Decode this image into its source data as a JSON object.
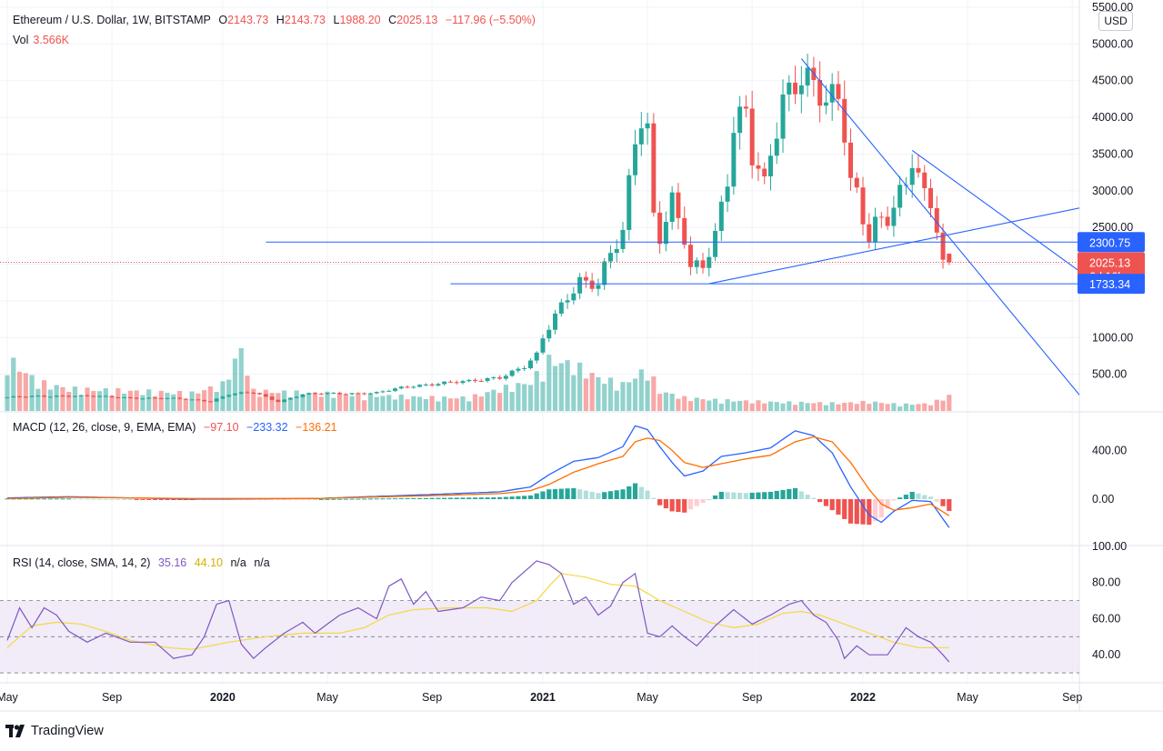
{
  "header": {
    "symbol": "Ethereum / U.S. Dollar, 1W, BITSTAMP",
    "open_label": "O",
    "open": "2143.73",
    "high_label": "H",
    "high": "2143.73",
    "low_label": "L",
    "low": "1988.20",
    "close_label": "C",
    "close": "2025.13",
    "change": "−117.96 (−5.50%)",
    "vol_label": "Vol",
    "vol_value": "3.566K"
  },
  "macd_legend": {
    "name": "MACD (12, 26, close, 9, EMA, EMA)",
    "hist": "−97.10",
    "macd": "−233.32",
    "signal": "−136.21"
  },
  "rsi_legend": {
    "name": "RSI (14, close, SMA, 14, 2)",
    "rsi": "35.16",
    "ma": "44.10",
    "na1": "n/a",
    "na2": "n/a"
  },
  "currency_button": "USD",
  "branding": "TradingView",
  "colors": {
    "up": "#26a69a",
    "down": "#ef5350",
    "line": "#2962ff",
    "macd": "#2962ff",
    "signal": "#ff6d00",
    "rsi": "#7e57c2",
    "rsi_ma": "#f5d742",
    "rsi_band": "#ede7f6"
  },
  "chart_data": {
    "type": "candlestick",
    "title": "Ethereum / U.S. Dollar, 1W, BITSTAMP",
    "x_ticks": [
      {
        "label": "May",
        "t": 0,
        "bold": false
      },
      {
        "label": "Sep",
        "t": 17,
        "bold": false
      },
      {
        "label": "2020",
        "t": 35,
        "bold": true
      },
      {
        "label": "May",
        "t": 52,
        "bold": false
      },
      {
        "label": "Sep",
        "t": 69,
        "bold": false
      },
      {
        "label": "2021",
        "t": 87,
        "bold": true
      },
      {
        "label": "May",
        "t": 104,
        "bold": false
      },
      {
        "label": "Sep",
        "t": 121,
        "bold": false
      },
      {
        "label": "2022",
        "t": 139,
        "bold": true
      },
      {
        "label": "May",
        "t": 156,
        "bold": false
      },
      {
        "label": "Sep",
        "t": 173,
        "bold": false
      }
    ],
    "price_axis": {
      "ylim": [
        0,
        5500
      ],
      "ticks": [
        "5500.00",
        "5000.00",
        "4500.00",
        "4000.00",
        "3500.00",
        "3000.00",
        "2500.00",
        "1000.00",
        "500.00"
      ],
      "tick_values": [
        5500,
        5000,
        4500,
        4000,
        3500,
        3000,
        2500,
        1000,
        500
      ]
    },
    "price_labels": [
      {
        "value": 2300.75,
        "text": "2300.75",
        "color": "#2962ff"
      },
      {
        "value": 2025.13,
        "text": "2025.13",
        "sub": "6d 16h",
        "color": "#ef5350"
      },
      {
        "value": 1733.34,
        "text": "1733.34",
        "color": "#2962ff"
      }
    ],
    "horizontal_lines": [
      {
        "value": 2300.75,
        "from_t": 42
      },
      {
        "value": 1733.34,
        "from_t": 72
      }
    ],
    "trend_lines": [
      {
        "t1": 129,
        "v1": 4800,
        "t2": 198,
        "v2": -2200
      },
      {
        "t1": 114,
        "v1": 1733,
        "t2": 175,
        "v2": 2780
      },
      {
        "t1": 147,
        "v1": 3550,
        "t2": 177,
        "v2": 1733
      }
    ],
    "anchors": [
      [
        0,
        185
      ],
      [
        10,
        210
      ],
      [
        20,
        180
      ],
      [
        28,
        165
      ],
      [
        33,
        135
      ],
      [
        36,
        225
      ],
      [
        40,
        250
      ],
      [
        44,
        130
      ],
      [
        48,
        225
      ],
      [
        54,
        240
      ],
      [
        60,
        245
      ],
      [
        66,
        345
      ],
      [
        70,
        380
      ],
      [
        75,
        395
      ],
      [
        80,
        470
      ],
      [
        84,
        600
      ],
      [
        86,
        740
      ],
      [
        87,
        975
      ],
      [
        89,
        1300
      ],
      [
        91,
        1600
      ],
      [
        93,
        1800
      ],
      [
        96,
        1700
      ],
      [
        98,
        2100
      ],
      [
        100,
        2400
      ],
      [
        102,
        3800
      ],
      [
        103,
        4100
      ],
      [
        104,
        3900
      ],
      [
        105,
        2700
      ],
      [
        106,
        2400
      ],
      [
        108,
        2800
      ],
      [
        110,
        2300
      ],
      [
        111,
        1900
      ],
      [
        113,
        2000
      ],
      [
        115,
        2450
      ],
      [
        117,
        3250
      ],
      [
        118,
        3900
      ],
      [
        120,
        4000
      ],
      [
        121,
        3400
      ],
      [
        123,
        3000
      ],
      [
        124,
        3500
      ],
      [
        126,
        4300
      ],
      [
        128,
        4600
      ],
      [
        129,
        4650
      ],
      [
        131,
        4400
      ],
      [
        133,
        4100
      ],
      [
        135,
        4200
      ],
      [
        136,
        3800
      ],
      [
        137,
        3150
      ],
      [
        138,
        3000
      ],
      [
        139,
        2700
      ],
      [
        140,
        2450
      ],
      [
        141,
        2600
      ],
      [
        143,
        2600
      ],
      [
        146,
        3000
      ],
      [
        147,
        3400
      ],
      [
        148,
        3200
      ],
      [
        149,
        2950
      ],
      [
        150,
        2900
      ],
      [
        151,
        2600
      ],
      [
        152,
        2050
      ],
      [
        153,
        2025
      ]
    ],
    "volume_axis": {
      "max": 5500
    },
    "volume_anchors": [
      [
        0,
        2400
      ],
      [
        5,
        1300
      ],
      [
        10,
        1000
      ],
      [
        20,
        900
      ],
      [
        30,
        800
      ],
      [
        35,
        1200
      ],
      [
        38,
        2800
      ],
      [
        40,
        900
      ],
      [
        50,
        800
      ],
      [
        60,
        700
      ],
      [
        70,
        600
      ],
      [
        75,
        600
      ],
      [
        80,
        1000
      ],
      [
        85,
        1300
      ],
      [
        88,
        2300
      ],
      [
        92,
        2100
      ],
      [
        96,
        1500
      ],
      [
        100,
        1200
      ],
      [
        104,
        1900
      ],
      [
        106,
        900
      ],
      [
        110,
        600
      ],
      [
        115,
        500
      ],
      [
        120,
        450
      ],
      [
        125,
        400
      ],
      [
        130,
        380
      ],
      [
        135,
        350
      ],
      [
        140,
        420
      ],
      [
        145,
        300
      ],
      [
        150,
        330
      ],
      [
        153,
        700
      ]
    ],
    "macd": {
      "ylim": [
        -380,
        700
      ],
      "ticks": [
        "400.00",
        "0.00"
      ],
      "tick_values": [
        400,
        0
      ],
      "macd_anchors": [
        [
          0,
          10
        ],
        [
          10,
          20
        ],
        [
          30,
          0
        ],
        [
          50,
          5
        ],
        [
          70,
          40
        ],
        [
          80,
          60
        ],
        [
          85,
          100
        ],
        [
          88,
          200
        ],
        [
          92,
          310
        ],
        [
          96,
          340
        ],
        [
          100,
          430
        ],
        [
          102,
          600
        ],
        [
          104,
          570
        ],
        [
          106,
          430
        ],
        [
          108,
          300
        ],
        [
          110,
          190
        ],
        [
          113,
          230
        ],
        [
          116,
          350
        ],
        [
          120,
          380
        ],
        [
          124,
          420
        ],
        [
          128,
          560
        ],
        [
          131,
          520
        ],
        [
          134,
          380
        ],
        [
          137,
          100
        ],
        [
          140,
          -130
        ],
        [
          142,
          -190
        ],
        [
          144,
          -100
        ],
        [
          147,
          -10
        ],
        [
          150,
          -20
        ],
        [
          153,
          -233
        ]
      ],
      "signal_anchors": [
        [
          0,
          5
        ],
        [
          10,
          15
        ],
        [
          30,
          5
        ],
        [
          50,
          5
        ],
        [
          70,
          30
        ],
        [
          80,
          45
        ],
        [
          85,
          70
        ],
        [
          88,
          120
        ],
        [
          92,
          220
        ],
        [
          96,
          290
        ],
        [
          100,
          350
        ],
        [
          102,
          470
        ],
        [
          104,
          500
        ],
        [
          106,
          480
        ],
        [
          108,
          400
        ],
        [
          110,
          300
        ],
        [
          113,
          260
        ],
        [
          116,
          290
        ],
        [
          120,
          330
        ],
        [
          124,
          360
        ],
        [
          128,
          470
        ],
        [
          131,
          510
        ],
        [
          134,
          470
        ],
        [
          137,
          300
        ],
        [
          140,
          80
        ],
        [
          142,
          -40
        ],
        [
          144,
          -90
        ],
        [
          147,
          -70
        ],
        [
          150,
          -40
        ],
        [
          153,
          -136
        ]
      ]
    },
    "rsi": {
      "ylim": [
        25,
        100
      ],
      "band": [
        30,
        70
      ],
      "midline": 50,
      "ticks": [
        "100.00",
        "80.00",
        "60.00",
        "40.00"
      ],
      "tick_values": [
        100,
        80,
        60,
        40
      ],
      "rsi_anchors": [
        [
          0,
          48
        ],
        [
          2,
          66
        ],
        [
          4,
          55
        ],
        [
          6,
          66
        ],
        [
          8,
          62
        ],
        [
          10,
          53
        ],
        [
          13,
          47
        ],
        [
          16,
          52
        ],
        [
          20,
          47
        ],
        [
          24,
          47
        ],
        [
          27,
          38
        ],
        [
          30,
          40
        ],
        [
          32,
          50
        ],
        [
          34,
          68
        ],
        [
          36,
          70
        ],
        [
          38,
          46
        ],
        [
          40,
          38
        ],
        [
          42,
          44
        ],
        [
          45,
          52
        ],
        [
          48,
          58
        ],
        [
          50,
          52
        ],
        [
          54,
          62
        ],
        [
          57,
          66
        ],
        [
          60,
          60
        ],
        [
          62,
          78
        ],
        [
          64,
          82
        ],
        [
          66,
          68
        ],
        [
          68,
          75
        ],
        [
          70,
          64
        ],
        [
          74,
          66
        ],
        [
          77,
          72
        ],
        [
          80,
          70
        ],
        [
          82,
          80
        ],
        [
          84,
          86
        ],
        [
          86,
          92
        ],
        [
          88,
          90
        ],
        [
          90,
          85
        ],
        [
          92,
          68
        ],
        [
          94,
          72
        ],
        [
          96,
          62
        ],
        [
          98,
          67
        ],
        [
          100,
          80
        ],
        [
          102,
          85
        ],
        [
          104,
          52
        ],
        [
          106,
          50
        ],
        [
          108,
          56
        ],
        [
          110,
          50
        ],
        [
          112,
          45
        ],
        [
          115,
          56
        ],
        [
          118,
          65
        ],
        [
          121,
          57
        ],
        [
          124,
          62
        ],
        [
          127,
          68
        ],
        [
          129,
          70
        ],
        [
          131,
          62
        ],
        [
          133,
          58
        ],
        [
          135,
          48
        ],
        [
          136,
          38
        ],
        [
          138,
          45
        ],
        [
          140,
          40
        ],
        [
          143,
          40
        ],
        [
          146,
          55
        ],
        [
          148,
          50
        ],
        [
          150,
          47
        ],
        [
          152,
          40
        ],
        [
          153,
          36
        ]
      ],
      "ma_anchors": [
        [
          0,
          44
        ],
        [
          4,
          56
        ],
        [
          8,
          58
        ],
        [
          12,
          57
        ],
        [
          16,
          53
        ],
        [
          20,
          48
        ],
        [
          26,
          44
        ],
        [
          30,
          43
        ],
        [
          36,
          47
        ],
        [
          42,
          50
        ],
        [
          48,
          52
        ],
        [
          54,
          52
        ],
        [
          58,
          55
        ],
        [
          62,
          62
        ],
        [
          66,
          65
        ],
        [
          72,
          66
        ],
        [
          78,
          66
        ],
        [
          82,
          64
        ],
        [
          86,
          70
        ],
        [
          88,
          78
        ],
        [
          90,
          85
        ],
        [
          94,
          83
        ],
        [
          98,
          79
        ],
        [
          102,
          78
        ],
        [
          106,
          70
        ],
        [
          110,
          64
        ],
        [
          114,
          58
        ],
        [
          118,
          55
        ],
        [
          122,
          57
        ],
        [
          126,
          63
        ],
        [
          129,
          64
        ],
        [
          132,
          62
        ],
        [
          136,
          57
        ],
        [
          140,
          52
        ],
        [
          144,
          47
        ],
        [
          148,
          44
        ],
        [
          153,
          44
        ]
      ]
    }
  }
}
